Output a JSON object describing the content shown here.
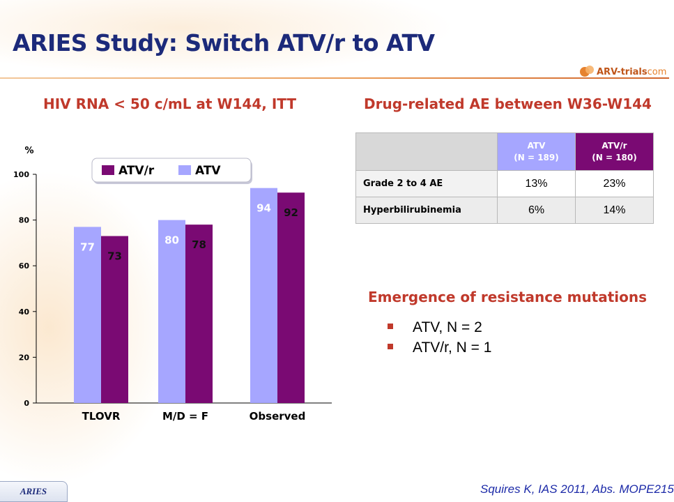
{
  "title": "ARIES Study: Switch ATV/r to ATV",
  "logo": {
    "brand": "ARV-trials",
    "domain": "com"
  },
  "left_section_title": "HIV RNA < 50 c/mL at W144, ITT",
  "right_section_title": "Drug-related AE between  W36-W144",
  "colors": {
    "atv": "#a6a6ff",
    "atvr": "#7a0a73",
    "accent": "#c0392b",
    "title": "#1c2a7a"
  },
  "chart_data": {
    "type": "bar",
    "ylabel": "%",
    "ylim": [
      0,
      100
    ],
    "yticks": [
      0,
      20,
      40,
      60,
      80,
      100
    ],
    "categories": [
      "TLOVR",
      "M/D = F",
      "Observed"
    ],
    "series": [
      {
        "name": "ATV",
        "values": [
          77,
          80,
          94
        ]
      },
      {
        "name": "ATV/r",
        "values": [
          73,
          78,
          92
        ]
      }
    ],
    "legend": {
      "position": "top",
      "order": [
        "ATV/r",
        "ATV"
      ]
    },
    "grid": false
  },
  "table": {
    "headers": [
      {
        "name": "ATV",
        "n": "(N = 189)"
      },
      {
        "name": "ATV/r",
        "n": "(N = 180)"
      }
    ],
    "rows": [
      {
        "label": "Grade 2 to 4 AE",
        "atv": "13%",
        "atvr": "23%"
      },
      {
        "label": "Hyperbilirubinemia",
        "atv": "6%",
        "atvr": "14%"
      }
    ]
  },
  "resistance": {
    "title": "Emergence of resistance mutations",
    "items": [
      "ATV, N = 2",
      "ATV/r, N = 1"
    ]
  },
  "footer": {
    "badge": "ARIES",
    "citation": "Squires K, IAS 2011, Abs. MOPE215"
  }
}
